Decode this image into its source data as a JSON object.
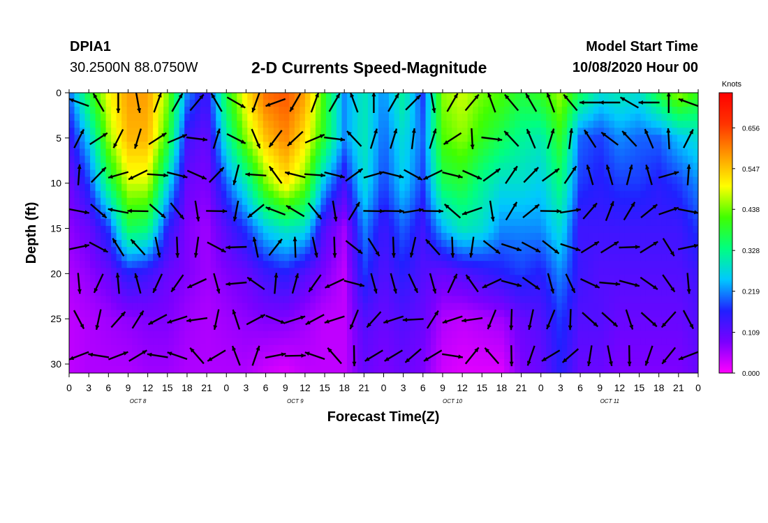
{
  "header": {
    "station": "DPIA1",
    "coords": "30.2500N 88.0750W",
    "title": "2-D Currents Speed-Magnitude",
    "model_start_label": "Model Start Time",
    "model_start_value": "10/08/2020 Hour 00"
  },
  "chart_data": {
    "type": "heatmap",
    "title": "2-D Currents Speed-Magnitude",
    "xlabel": "Forecast Time(Z)",
    "ylabel": "Depth (ft)",
    "x_ticks": [
      "0",
      "3",
      "6",
      "9",
      "12",
      "15",
      "18",
      "21",
      "0",
      "3",
      "6",
      "9",
      "12",
      "15",
      "18",
      "21",
      "0",
      "3",
      "6",
      "9",
      "12",
      "15",
      "18",
      "21",
      "0",
      "3",
      "6",
      "9",
      "12",
      "15",
      "18",
      "21",
      "0"
    ],
    "day_labels": [
      "OCT 8",
      "OCT 9",
      "OCT 10",
      "OCT 11"
    ],
    "xlim_hours": [
      0,
      96
    ],
    "y_ticks": [
      0,
      5,
      10,
      15,
      20,
      25,
      30
    ],
    "ylim_ft": [
      0,
      31
    ],
    "y_inverted": true,
    "colorbar": {
      "unit": "Knots",
      "ticks": [
        "0.656",
        "0.547",
        "0.438",
        "0.328",
        "0.219",
        "0.109",
        "0.000"
      ],
      "range": [
        0,
        0.75
      ],
      "colors": [
        "#ff00ff",
        "#7a00ff",
        "#2020ff",
        "#00c8ff",
        "#00ff80",
        "#40ff00",
        "#ffff00",
        "#ff9900",
        "#ff3300",
        "#ff0000"
      ]
    },
    "speed_grid": {
      "hours": [
        0,
        3,
        6,
        9,
        12,
        15,
        18,
        21,
        24,
        27,
        30,
        33,
        36,
        39,
        42,
        45,
        48,
        51,
        54,
        57,
        60,
        63,
        66,
        69,
        72,
        75,
        78,
        81,
        84,
        87,
        90,
        93,
        96
      ],
      "depths_ft": [
        0,
        5,
        10,
        15,
        20,
        25,
        31
      ],
      "values": [
        [
          0.2,
          0.38,
          0.5,
          0.58,
          0.58,
          0.45,
          0.22,
          0.14,
          0.38,
          0.52,
          0.62,
          0.64,
          0.58,
          0.4,
          0.22,
          0.3,
          0.22,
          0.32,
          0.18,
          0.45,
          0.48,
          0.44,
          0.42,
          0.38,
          0.4,
          0.46,
          0.36,
          0.28,
          0.3,
          0.28,
          0.38,
          0.46,
          0.4
        ],
        [
          0.14,
          0.26,
          0.45,
          0.56,
          0.56,
          0.4,
          0.14,
          0.1,
          0.3,
          0.45,
          0.55,
          0.6,
          0.52,
          0.38,
          0.22,
          0.3,
          0.2,
          0.28,
          0.2,
          0.42,
          0.45,
          0.4,
          0.36,
          0.32,
          0.3,
          0.4,
          0.2,
          0.18,
          0.22,
          0.2,
          0.2,
          0.25,
          0.28
        ],
        [
          0.09,
          0.18,
          0.35,
          0.48,
          0.48,
          0.28,
          0.1,
          0.08,
          0.2,
          0.3,
          0.44,
          0.52,
          0.44,
          0.24,
          0.14,
          0.28,
          0.18,
          0.26,
          0.18,
          0.36,
          0.38,
          0.32,
          0.28,
          0.28,
          0.26,
          0.34,
          0.18,
          0.16,
          0.18,
          0.18,
          0.16,
          0.18,
          0.22
        ],
        [
          0.07,
          0.1,
          0.18,
          0.36,
          0.34,
          0.16,
          0.08,
          0.06,
          0.12,
          0.18,
          0.26,
          0.3,
          0.28,
          0.12,
          0.06,
          0.22,
          0.14,
          0.2,
          0.14,
          0.24,
          0.3,
          0.28,
          0.22,
          0.22,
          0.22,
          0.28,
          0.14,
          0.14,
          0.14,
          0.14,
          0.14,
          0.14,
          0.18
        ],
        [
          0.05,
          0.07,
          0.1,
          0.16,
          0.14,
          0.1,
          0.08,
          0.06,
          0.08,
          0.1,
          0.14,
          0.16,
          0.12,
          0.08,
          0.04,
          0.18,
          0.12,
          0.16,
          0.12,
          0.1,
          0.12,
          0.14,
          0.16,
          0.18,
          0.16,
          0.22,
          0.14,
          0.12,
          0.12,
          0.12,
          0.12,
          0.12,
          0.14
        ],
        [
          0.04,
          0.05,
          0.06,
          0.07,
          0.08,
          0.08,
          0.06,
          0.05,
          0.06,
          0.07,
          0.08,
          0.08,
          0.06,
          0.04,
          0.04,
          0.12,
          0.1,
          0.12,
          0.1,
          0.05,
          0.04,
          0.05,
          0.06,
          0.1,
          0.12,
          0.18,
          0.12,
          0.12,
          0.1,
          0.1,
          0.1,
          0.1,
          0.12
        ],
        [
          0.04,
          0.05,
          0.05,
          0.05,
          0.06,
          0.06,
          0.05,
          0.05,
          0.05,
          0.05,
          0.03,
          0.02,
          0.04,
          0.04,
          0.04,
          0.1,
          0.08,
          0.1,
          0.08,
          0.03,
          0.02,
          0.02,
          0.02,
          0.08,
          0.1,
          0.16,
          0.1,
          0.1,
          0.08,
          0.08,
          0.08,
          0.08,
          0.1
        ]
      ]
    },
    "vectors_note": "Arrows show current direction at each grid point",
    "vector_directions_deg": [
      [
        290,
        330,
        180,
        170,
        20,
        30,
        40,
        330,
        120,
        200,
        250,
        210,
        20,
        30,
        340,
        0,
        30,
        45,
        170,
        30,
        40,
        340,
        320,
        330,
        340,
        320,
        270,
        270,
        300,
        270,
        0
      ],
      [
        350,
        20,
        170,
        160,
        20,
        30,
        60,
        340,
        80,
        120,
        180,
        190,
        30,
        60,
        280,
        340,
        340,
        330,
        340,
        200,
        140,
        60,
        280,
        300,
        340,
        330,
        290,
        270,
        280,
        300,
        320
      ]
    ]
  }
}
